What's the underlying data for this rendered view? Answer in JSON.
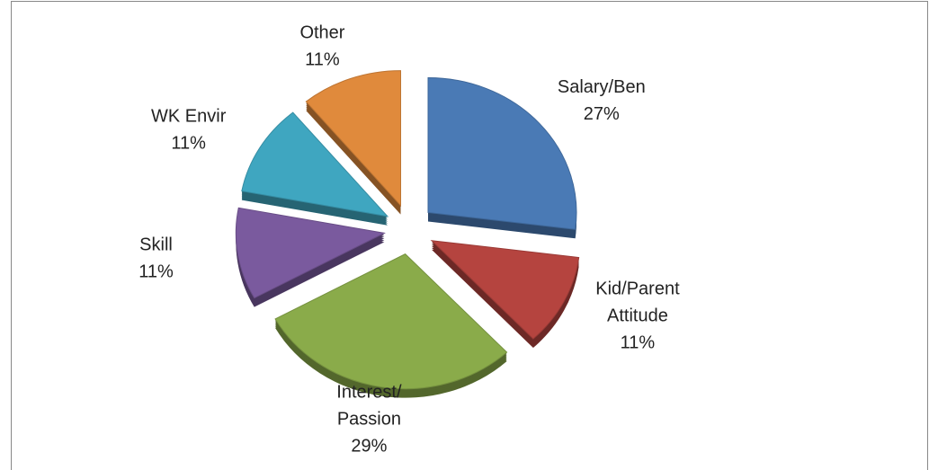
{
  "chart_data": {
    "type": "pie",
    "categories": [
      "Salary/Ben",
      "Kid/Parent Attitude",
      "Interest/ Passion",
      "Skill",
      "WK Envir",
      "Other"
    ],
    "values": [
      27,
      11,
      29,
      11,
      11,
      11
    ],
    "value_labels": [
      "27%",
      "11%",
      "29%",
      "11%",
      "11%",
      "11%"
    ],
    "colors": [
      "#4a7ab5",
      "#b5443f",
      "#8aab4a",
      "#7a5a9e",
      "#3fa6c0",
      "#e08a3c"
    ],
    "exploded": true
  }
}
